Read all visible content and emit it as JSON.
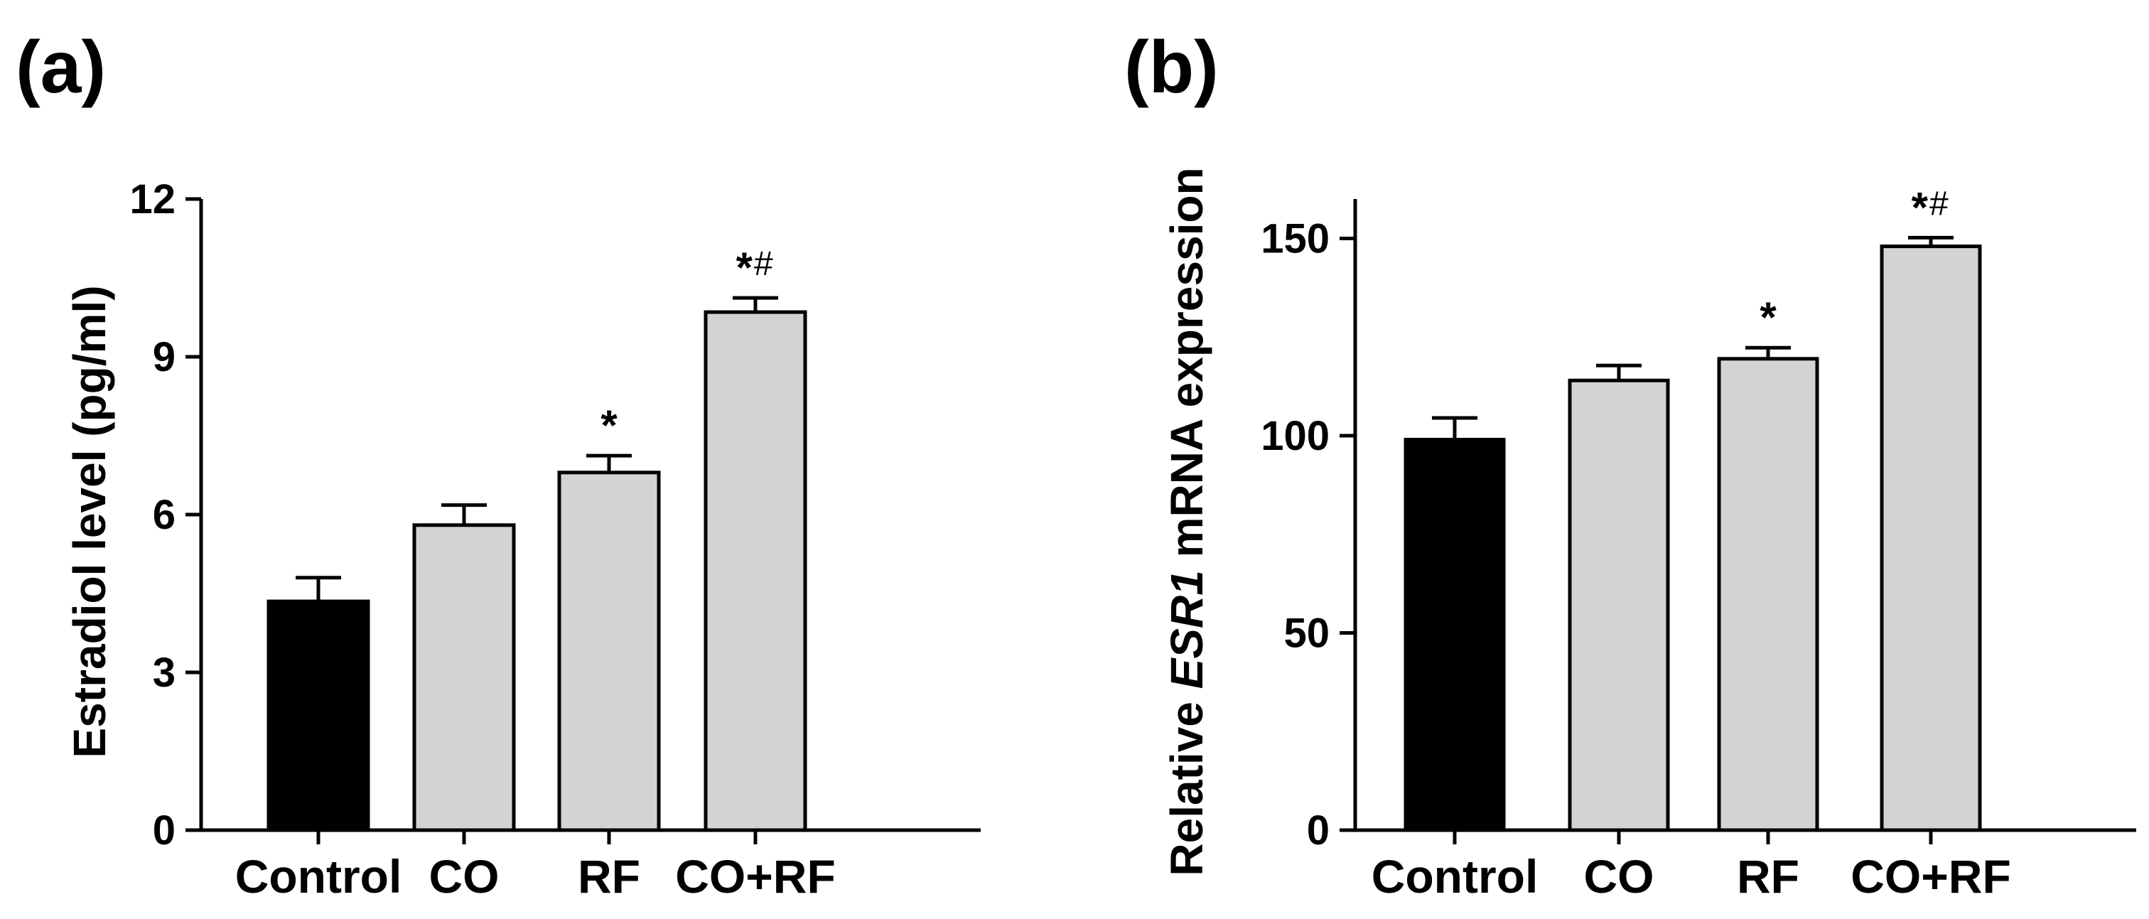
{
  "colors": {
    "control": "#000000",
    "treatment": "#d3d3d3",
    "stroke": "#000000"
  },
  "chart_data": [
    {
      "id": "a",
      "panel_label": "(a)",
      "type": "bar",
      "categories": [
        "Control",
        "CO",
        "RF",
        "CO+RF"
      ],
      "values": [
        4.35,
        5.8,
        6.8,
        9.85
      ],
      "errors": [
        0.45,
        0.38,
        0.32,
        0.27
      ],
      "significance": [
        {
          "star": "",
          "hash": ""
        },
        {
          "star": "",
          "hash": ""
        },
        {
          "star": "*",
          "hash": ""
        },
        {
          "star": "*",
          "hash": "#"
        }
      ],
      "ylabel": "Estradiol level (pg/ml)",
      "ylabel_italic": "",
      "ylabel_suffix": "",
      "xlabel": "",
      "ylim": [
        0,
        12
      ],
      "yticks": [
        "0",
        "3",
        "6",
        "9",
        "12"
      ],
      "ytick_values": [
        0,
        3,
        6,
        9,
        12
      ]
    },
    {
      "id": "b",
      "panel_label": "(b)",
      "type": "bar",
      "categories": [
        "Control",
        "CO",
        "RF",
        "CO+RF"
      ],
      "values": [
        99,
        114,
        119.5,
        148
      ],
      "errors": [
        5.5,
        3.8,
        2.8,
        2.2
      ],
      "significance": [
        {
          "star": "",
          "hash": ""
        },
        {
          "star": "",
          "hash": ""
        },
        {
          "star": "*",
          "hash": ""
        },
        {
          "star": "*",
          "hash": "#"
        }
      ],
      "ylabel": "Relative ",
      "ylabel_italic": "ESR1",
      "ylabel_suffix": " mRNA expression",
      "xlabel": "",
      "ylim": [
        0,
        160
      ],
      "yticks": [
        "0",
        "50",
        "100",
        "150"
      ],
      "ytick_values": [
        0,
        50,
        100,
        150
      ]
    }
  ]
}
